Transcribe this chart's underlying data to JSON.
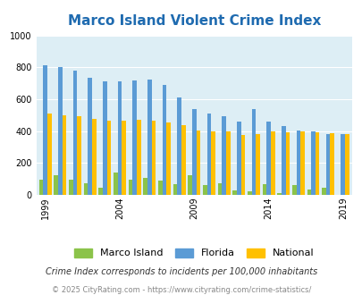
{
  "title": "Marco Island Violent Crime Index",
  "years": [
    1999,
    2000,
    2001,
    2002,
    2003,
    2004,
    2005,
    2006,
    2007,
    2008,
    2009,
    2010,
    2011,
    2012,
    2013,
    2014,
    2015,
    2016,
    2017,
    2018,
    2019
  ],
  "marco_island": [
    97,
    120,
    95,
    73,
    42,
    140,
    95,
    105,
    90,
    65,
    120,
    58,
    72,
    25,
    20,
    65,
    12,
    58,
    30,
    42,
    0
  ],
  "florida": [
    810,
    800,
    780,
    735,
    710,
    710,
    715,
    725,
    690,
    610,
    540,
    510,
    490,
    460,
    540,
    460,
    430,
    405,
    395,
    380,
    380
  ],
  "national": [
    510,
    500,
    495,
    475,
    465,
    465,
    470,
    465,
    455,
    435,
    405,
    395,
    395,
    375,
    380,
    395,
    393,
    400,
    390,
    385,
    380
  ],
  "color_marco": "#8bc34a",
  "color_florida": "#5b9bd5",
  "color_national": "#ffc000",
  "bg_color": "#ddeef5",
  "ylim": [
    0,
    1000
  ],
  "yticks": [
    0,
    200,
    400,
    600,
    800,
    1000
  ],
  "xlabel_ticks": [
    1999,
    2004,
    2009,
    2014,
    2019
  ],
  "legend_labels": [
    "Marco Island",
    "Florida",
    "National"
  ],
  "footnote1": "Crime Index corresponds to incidents per 100,000 inhabitants",
  "footnote2": "© 2025 CityRating.com - https://www.cityrating.com/crime-statistics/",
  "bar_width": 0.28
}
